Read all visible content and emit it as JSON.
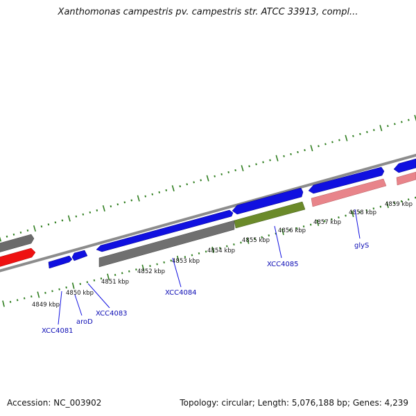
{
  "title": "Xanthomonas campestris pv. campestris str. ATCC 33913, compl...",
  "footer": {
    "accession": "Accession: NC_003902",
    "summary": "Topology: circular; Length: 5,076,188 bp; Genes: 4,239"
  },
  "kbp_labels": [
    "4849 kbp",
    "4850 kbp",
    "4851 kbp",
    "4852 kbp",
    "4853 kbp",
    "4854 kbp",
    "4855 kbp",
    "4856 kbp",
    "4857 kbp",
    "4858 kbp",
    "4859 kbp"
  ],
  "gene_labels": [
    "XCC4081",
    "aroD",
    "XCC4083",
    "XCC4084",
    "XCC4085",
    "glyS"
  ],
  "colors": {
    "backbone": "#8c8c8c",
    "tick": "#2e7d1e",
    "gene_blue": "#1010e0",
    "gene_grey": "#666666",
    "gene_red": "#ee1111",
    "gene_olive": "#6b8a2a",
    "gene_pink": "#e8848a",
    "label": "#0a0ab4"
  }
}
